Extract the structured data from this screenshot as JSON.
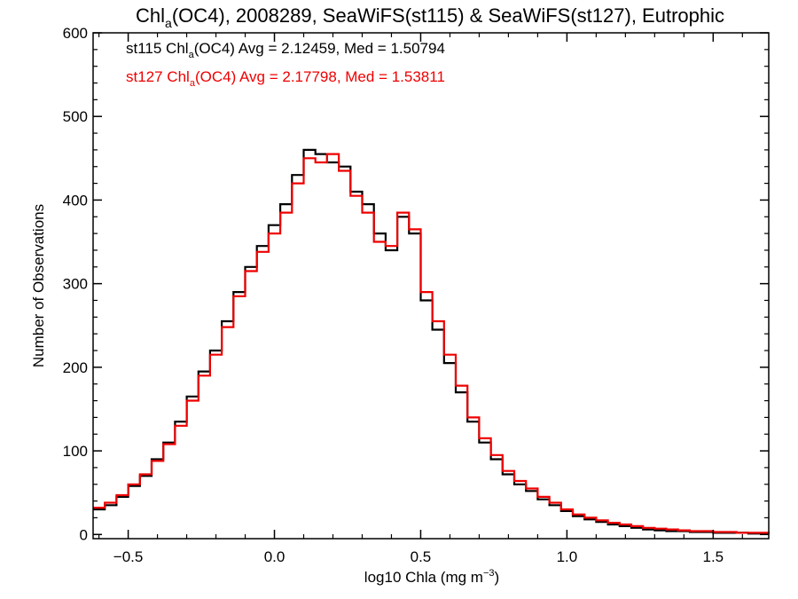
{
  "chart_data": {
    "type": "line",
    "title": {
      "prefix": "Chl",
      "sub": "a",
      "suffix": "(OC4), 2008289, SeaWiFS(st115) & SeaWiFS(st127), Eutrophic"
    },
    "xlabel": {
      "prefix": "log10 Chla (mg m",
      "sup": "−3",
      "suffix": ")"
    },
    "ylabel": "Number of Observations",
    "xlim": [
      -0.62,
      1.69
    ],
    "ylim": [
      -5,
      600
    ],
    "xticks": [
      -0.5,
      0.0,
      0.5,
      1.0,
      1.5
    ],
    "xtick_labels": [
      "−0.5",
      "0.0",
      "0.5",
      "1.0",
      "1.5"
    ],
    "yticks": [
      0,
      100,
      200,
      300,
      400,
      500,
      600
    ],
    "ytick_labels": [
      "0",
      "100",
      "200",
      "300",
      "400",
      "500",
      "600"
    ],
    "grid": false,
    "legend_placement": "top-left",
    "annotations": [
      {
        "color": "#000000",
        "prefix": "st115 Chl",
        "sub": "a",
        "suffix": "(OC4) Avg = 2.12459, Med = 1.50794"
      },
      {
        "color": "#ee0000",
        "prefix": "st127 Chl",
        "sub": "a",
        "suffix": "(OC4) Avg = 2.17798, Med = 1.53811"
      }
    ],
    "series": [
      {
        "color": "#000000",
        "x": [
          -0.62,
          -0.58,
          -0.54,
          -0.5,
          -0.46,
          -0.42,
          -0.38,
          -0.34,
          -0.3,
          -0.26,
          -0.22,
          -0.18,
          -0.14,
          -0.1,
          -0.06,
          -0.02,
          0.02,
          0.06,
          0.1,
          0.14,
          0.18,
          0.22,
          0.26,
          0.3,
          0.34,
          0.38,
          0.42,
          0.46,
          0.5,
          0.54,
          0.58,
          0.62,
          0.66,
          0.7,
          0.74,
          0.78,
          0.82,
          0.86,
          0.9,
          0.94,
          0.98,
          1.02,
          1.06,
          1.1,
          1.14,
          1.18,
          1.22,
          1.26,
          1.3,
          1.34,
          1.38,
          1.42,
          1.46,
          1.5,
          1.54,
          1.58,
          1.62,
          1.66,
          1.69
        ],
        "y": [
          30,
          35,
          45,
          58,
          70,
          90,
          110,
          135,
          165,
          195,
          220,
          255,
          290,
          320,
          345,
          370,
          395,
          430,
          460,
          455,
          445,
          440,
          410,
          395,
          360,
          340,
          380,
          360,
          280,
          245,
          205,
          170,
          135,
          110,
          90,
          72,
          60,
          52,
          42,
          35,
          28,
          22,
          18,
          15,
          12,
          10,
          8,
          6,
          5,
          4,
          4,
          3,
          3,
          2,
          2,
          2,
          1,
          1,
          1
        ]
      },
      {
        "color": "#ee0000",
        "x": [
          -0.62,
          -0.58,
          -0.54,
          -0.5,
          -0.46,
          -0.42,
          -0.38,
          -0.34,
          -0.3,
          -0.26,
          -0.22,
          -0.18,
          -0.14,
          -0.1,
          -0.06,
          -0.02,
          0.02,
          0.06,
          0.1,
          0.14,
          0.18,
          0.22,
          0.26,
          0.3,
          0.34,
          0.38,
          0.42,
          0.46,
          0.5,
          0.54,
          0.58,
          0.62,
          0.66,
          0.7,
          0.74,
          0.78,
          0.82,
          0.86,
          0.9,
          0.94,
          0.98,
          1.02,
          1.06,
          1.1,
          1.14,
          1.18,
          1.22,
          1.26,
          1.3,
          1.34,
          1.38,
          1.42,
          1.46,
          1.5,
          1.54,
          1.58,
          1.62,
          1.66,
          1.69
        ],
        "y": [
          32,
          38,
          47,
          60,
          72,
          88,
          108,
          130,
          160,
          190,
          215,
          248,
          285,
          315,
          338,
          360,
          385,
          420,
          450,
          445,
          455,
          435,
          405,
          385,
          350,
          345,
          385,
          365,
          290,
          255,
          215,
          178,
          140,
          115,
          95,
          76,
          64,
          55,
          45,
          38,
          30,
          24,
          20,
          17,
          14,
          12,
          10,
          8,
          7,
          6,
          5,
          4,
          4,
          3,
          3,
          2,
          2,
          2,
          1
        ]
      }
    ]
  }
}
